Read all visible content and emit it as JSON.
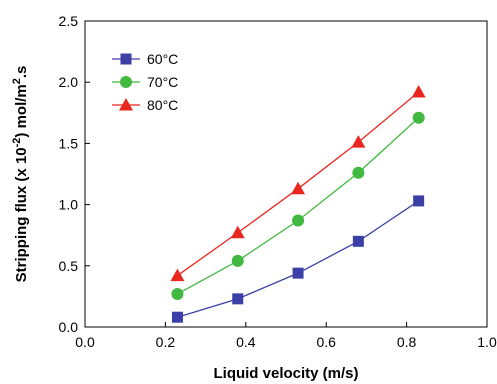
{
  "chart_data": {
    "type": "line",
    "xlabel": "Liquid velocity (m/s)",
    "ylabel_parts": [
      "Stripping flux (x 10",
      "-2",
      ") mol/m",
      "2",
      ".s"
    ],
    "xlim": [
      0.0,
      1.0
    ],
    "ylim": [
      0.0,
      2.5
    ],
    "xticks": [
      "0.0",
      "0.2",
      "0.4",
      "0.6",
      "0.8",
      "1.0"
    ],
    "yticks": [
      "0.0",
      "0.5",
      "1.0",
      "1.5",
      "2.0",
      "2.5"
    ],
    "grid": false,
    "legend_position": "top-left",
    "x": [
      0.23,
      0.38,
      0.53,
      0.68,
      0.83
    ],
    "series": [
      {
        "name": "60°C",
        "marker": "square",
        "color": "#3b3fa6",
        "values": [
          0.08,
          0.23,
          0.44,
          0.7,
          1.03
        ]
      },
      {
        "name": "70°C",
        "marker": "circle",
        "color": "#41b83f",
        "values": [
          0.27,
          0.54,
          0.87,
          1.26,
          1.71
        ]
      },
      {
        "name": "80°C",
        "marker": "triangle",
        "color": "#e8281f",
        "values": [
          0.42,
          0.77,
          1.13,
          1.51,
          1.92
        ]
      }
    ]
  }
}
